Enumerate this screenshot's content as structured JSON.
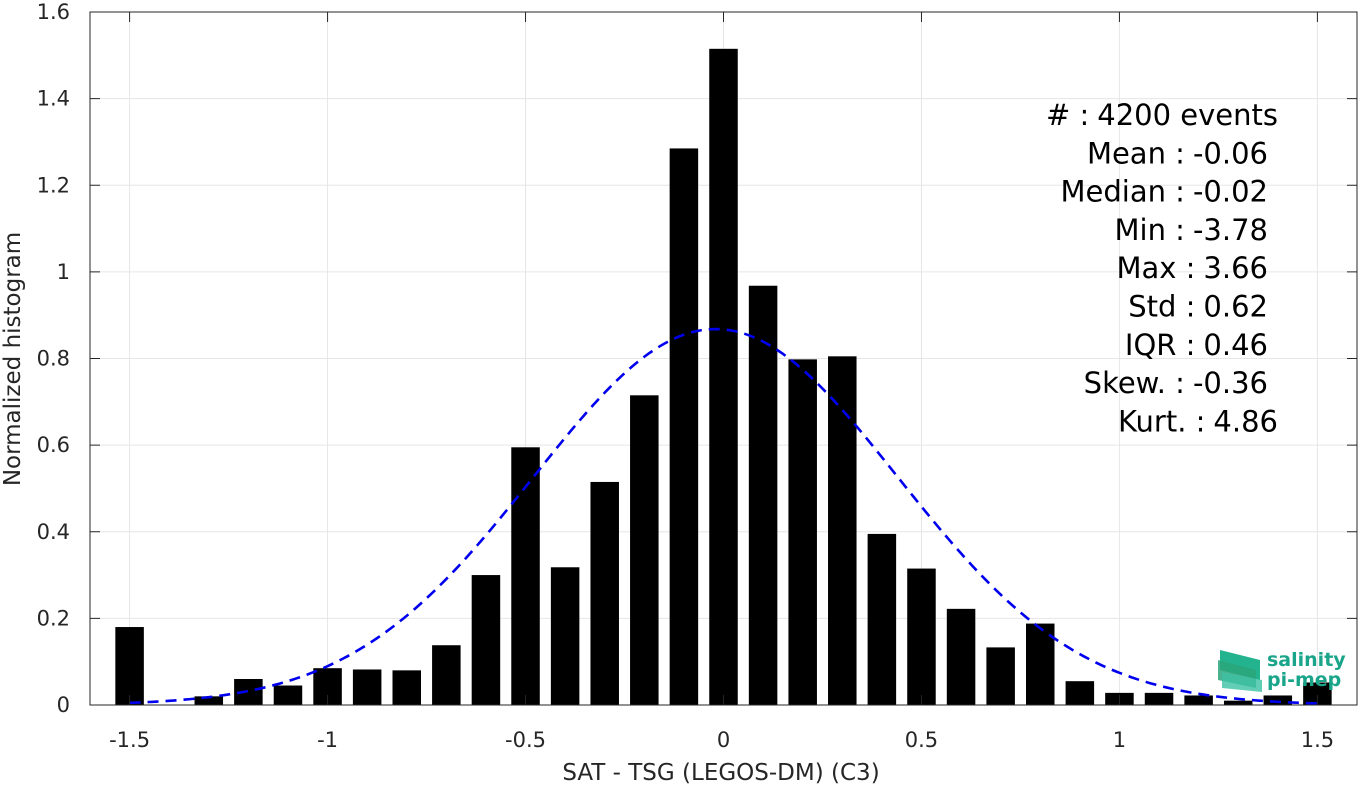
{
  "chart_data": {
    "type": "bar",
    "xlabel": "SAT - TSG (LEGOS-DM) (C3)",
    "ylabel": "Normalized histogram",
    "xlim": [
      -1.6,
      1.6
    ],
    "ylim": [
      0,
      1.6
    ],
    "grid": true,
    "x_ticks": [
      -1.5,
      -1,
      -0.5,
      0,
      0.5,
      1,
      1.5
    ],
    "x_tick_labels": [
      "-1.5",
      "-1",
      "-0.5",
      "0",
      "0.5",
      "1",
      "1.5"
    ],
    "y_ticks": [
      0,
      0.2,
      0.4,
      0.6,
      0.8,
      1,
      1.2,
      1.4,
      1.6
    ],
    "y_tick_labels": [
      "0",
      "0.2",
      "0.4",
      "0.6",
      "0.8",
      "1",
      "1.2",
      "1.4",
      "1.6"
    ],
    "bar_centers": [
      -1.5,
      -1.4,
      -1.3,
      -1.2,
      -1.1,
      -1.0,
      -0.9,
      -0.8,
      -0.7,
      -0.6,
      -0.5,
      -0.4,
      -0.3,
      -0.2,
      -0.1,
      0.0,
      0.1,
      0.2,
      0.3,
      0.4,
      0.5,
      0.6,
      0.7,
      0.8,
      0.9,
      1.0,
      1.1,
      1.2,
      1.3,
      1.4,
      1.5
    ],
    "bar_values": [
      0.18,
      0.0,
      0.02,
      0.06,
      0.045,
      0.085,
      0.082,
      0.08,
      0.138,
      0.3,
      0.595,
      0.318,
      0.515,
      0.715,
      1.285,
      1.515,
      0.968,
      0.798,
      0.805,
      0.395,
      0.315,
      0.222,
      0.133,
      0.188,
      0.055,
      0.028,
      0.028,
      0.022,
      0.01,
      0.022,
      0.052
    ],
    "bar_color": "#000000",
    "fit_curve": {
      "style": "dashed",
      "color": "#0000ee",
      "mean": -0.02,
      "std": 0.46,
      "peak": 0.868
    },
    "stats": [
      {
        "label": "#  :",
        "value": "4200 events"
      },
      {
        "label": "Mean :",
        "value": "-0.06"
      },
      {
        "label": "Median :",
        "value": "-0.02"
      },
      {
        "label": "Min :",
        "value": "-3.78"
      },
      {
        "label": "Max :",
        "value": "3.66"
      },
      {
        "label": "Std :",
        "value": "0.62"
      },
      {
        "label": "IQR :",
        "value": "0.46"
      },
      {
        "label": "Skew. :",
        "value": "-0.36"
      },
      {
        "label": "Kurt. :",
        "value": "4.86"
      }
    ]
  },
  "logo": {
    "line1": "salinity",
    "line2": "pi-mep",
    "color": "#1aa58a"
  }
}
